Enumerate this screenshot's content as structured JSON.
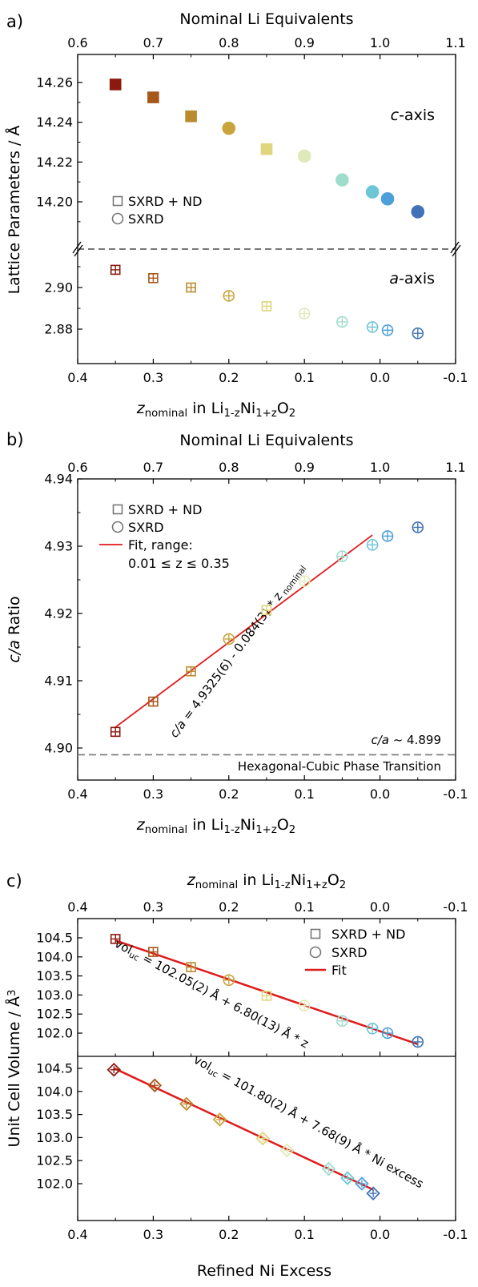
{
  "panels": [
    {
      "label": "a)",
      "top_axis_title": "Nominal Li Equivalents",
      "top_ticks": [
        "0.6",
        "0.7",
        "0.8",
        "0.9",
        "1.0",
        "1.1"
      ],
      "bottom_ticks": [
        "0.4",
        "0.3",
        "0.2",
        "0.1",
        "0.0",
        "-0.1"
      ],
      "ylabel": "Lattice Parameters / Å",
      "xlabel": [
        "z",
        "nominal",
        " in Li",
        "1-z",
        "Ni",
        "1+z",
        "O",
        "2"
      ],
      "upper_yticks": [
        "14.26",
        "14.24",
        "14.22",
        "14.20"
      ],
      "lower_yticks": [
        "2.90",
        "2.88"
      ],
      "annot_c": [
        "c",
        "-axis"
      ],
      "annot_a": [
        "a",
        "-axis"
      ],
      "legend": [
        "SXRD + ND",
        "SXRD"
      ]
    },
    {
      "label": "b)",
      "top_axis_title": "Nominal Li Equivalents",
      "top_ticks": [
        "0.6",
        "0.7",
        "0.8",
        "0.9",
        "1.0",
        "1.1"
      ],
      "bottom_ticks": [
        "0.4",
        "0.3",
        "0.2",
        "0.1",
        "0.0",
        "-0.1"
      ],
      "ylabel": [
        "c/a",
        " Ratio"
      ],
      "yticks": [
        "4.94",
        "4.93",
        "4.92",
        "4.91",
        "4.90"
      ],
      "xlabel": [
        "z",
        "nominal",
        " in Li",
        "1-z",
        "Ni",
        "1+z",
        "O",
        "2"
      ],
      "legend": [
        "SXRD + ND",
        "SXRD",
        "Fit, range:",
        "0.01 ≤ z ≤ 0.35"
      ],
      "fit_equation": [
        "c/a",
        " = 4.9325(6) - 0.084(3) * z",
        " nominal"
      ],
      "transition_value": [
        "c/a",
        " ~ 4.899"
      ],
      "transition_label": "Hexagonal-Cubic Phase Transition"
    },
    {
      "label": "c)",
      "top_axis_title": [
        "z",
        "nominal",
        " in Li",
        "1-z",
        "Ni",
        "1+z",
        "O",
        "2"
      ],
      "top_ticks": [
        "0.4",
        "0.3",
        "0.2",
        "0.1",
        "0.0",
        "-0.1"
      ],
      "bottom_ticks": [
        "0.4",
        "0.3",
        "0.2",
        "0.1",
        "0.0",
        "-0.1"
      ],
      "ylabel": [
        "Unit Cell Volume / Å",
        "3"
      ],
      "yticks": [
        "104.5",
        "104.0",
        "103.5",
        "103.0",
        "102.5",
        "102.0"
      ],
      "xlabel": "Refined Ni Excess",
      "legend": [
        "SXRD + ND",
        "SXRD",
        "Fit"
      ],
      "eq_upper": [
        "vol",
        "uc",
        " = 102.05(2) Å + 6.80(13) Å * z"
      ],
      "eq_lower": [
        "vol",
        "uc",
        " = 101.80(2) Å + 7.68(9) Å * Ni excess"
      ]
    }
  ],
  "chart_data": [
    {
      "type": "scatter",
      "title": "",
      "xlabel": "z_nominal in Li1-zNi1+zO2",
      "x2label": "Nominal Li Equivalents",
      "ylabel": "Lattice Parameters / Å",
      "xlim": [
        0.4,
        -0.1
      ],
      "ylim_c": [
        14.185,
        14.268
      ],
      "ylim_a": [
        2.87,
        2.918
      ],
      "colors": [
        "#8b1a0e",
        "#a8571b",
        "#ba8a2e",
        "#c9a43c",
        "#e0d67e",
        "#e0eab8",
        "#9edccc",
        "#6cc6d6",
        "#4c9fd8",
        "#3f72b8"
      ],
      "x": [
        0.35,
        0.3,
        0.25,
        0.2,
        0.15,
        0.1,
        0.05,
        0.01,
        -0.01,
        -0.05
      ],
      "markers": [
        "square",
        "square",
        "square",
        "circle",
        "square",
        "circle",
        "circle",
        "circle",
        "circle",
        "circle"
      ],
      "series": [
        {
          "name": "c-axis",
          "values": [
            14.259,
            14.2525,
            14.243,
            14.237,
            14.2265,
            14.223,
            14.211,
            14.205,
            14.2015,
            14.195
          ]
        },
        {
          "name": "a-axis",
          "values": [
            2.9085,
            2.9045,
            2.9,
            2.896,
            2.891,
            2.8875,
            2.8835,
            2.881,
            2.8795,
            2.878
          ]
        }
      ],
      "legend_position": "middle-left",
      "grid": false
    },
    {
      "type": "scatter",
      "title": "",
      "xlabel": "z_nominal in Li1-zNi1+zO2",
      "x2label": "Nominal Li Equivalents",
      "ylabel": "c/a Ratio",
      "xlim": [
        0.4,
        -0.1
      ],
      "ylim": [
        4.8967,
        4.94
      ],
      "colors": [
        "#8b1a0e",
        "#a8571b",
        "#ba8a2e",
        "#c9a43c",
        "#e0d67e",
        "#e0eab8",
        "#9edccc",
        "#6cc6d6",
        "#4c9fd8",
        "#3f72b8"
      ],
      "x": [
        0.35,
        0.3,
        0.25,
        0.2,
        0.15,
        0.1,
        0.05,
        0.01,
        -0.01,
        -0.05
      ],
      "markers": [
        "square",
        "square",
        "square",
        "circle",
        "square",
        "circle",
        "circle",
        "circle",
        "circle",
        "circle"
      ],
      "series": [
        {
          "name": "c/a",
          "values": [
            4.9024,
            4.9069,
            4.9114,
            4.9162,
            4.9205,
            4.9248,
            4.9285,
            4.9302,
            4.9315,
            4.9328
          ]
        }
      ],
      "fit": {
        "intercept": 4.9325,
        "slope": -0.084,
        "x_range": [
          0.35,
          0.01
        ]
      },
      "reference_line": 4.899,
      "legend_position": "top-left",
      "grid": false
    },
    {
      "type": "scatter",
      "title": "",
      "x2label": "z_nominal in Li1-zNi1+zO2",
      "xlabel": "Refined Ni Excess",
      "ylabel": "Unit Cell Volume / Å3",
      "xlim": [
        0.4,
        -0.1
      ],
      "ylim": [
        101.65,
        104.75
      ],
      "colors": [
        "#8b1a0e",
        "#a8571b",
        "#ba8a2e",
        "#c9a43c",
        "#e0d67e",
        "#e0eab8",
        "#9edccc",
        "#6cc6d6",
        "#4c9fd8",
        "#3f72b8"
      ],
      "upper": {
        "x": [
          0.35,
          0.3,
          0.25,
          0.2,
          0.15,
          0.1,
          0.05,
          0.01,
          -0.01,
          -0.05
        ],
        "markers": [
          "square",
          "square",
          "square",
          "circle",
          "square",
          "circle",
          "circle",
          "circle",
          "circle",
          "circle"
        ],
        "values": [
          104.47,
          104.13,
          103.73,
          103.39,
          102.98,
          102.72,
          102.32,
          102.12,
          102.0,
          101.77
        ],
        "fit": {
          "intercept": 102.05,
          "slope": 6.8,
          "x_range": [
            0.35,
            -0.05
          ]
        }
      },
      "lower": {
        "x": [
          0.352,
          0.298,
          0.256,
          0.212,
          0.155,
          0.123,
          0.068,
          0.043,
          0.024,
          0.009
        ],
        "markers": [
          "diamond",
          "diamond",
          "diamond",
          "diamond",
          "diamond",
          "diamond",
          "diamond",
          "diamond",
          "diamond",
          "diamond"
        ],
        "values": [
          104.47,
          104.13,
          103.73,
          103.39,
          102.98,
          102.72,
          102.32,
          102.12,
          102.0,
          101.79
        ],
        "fit": {
          "intercept": 101.8,
          "slope": 7.68,
          "x_range": [
            0.352,
            0.009
          ]
        }
      },
      "legend_position": "top-right",
      "grid": false
    }
  ]
}
